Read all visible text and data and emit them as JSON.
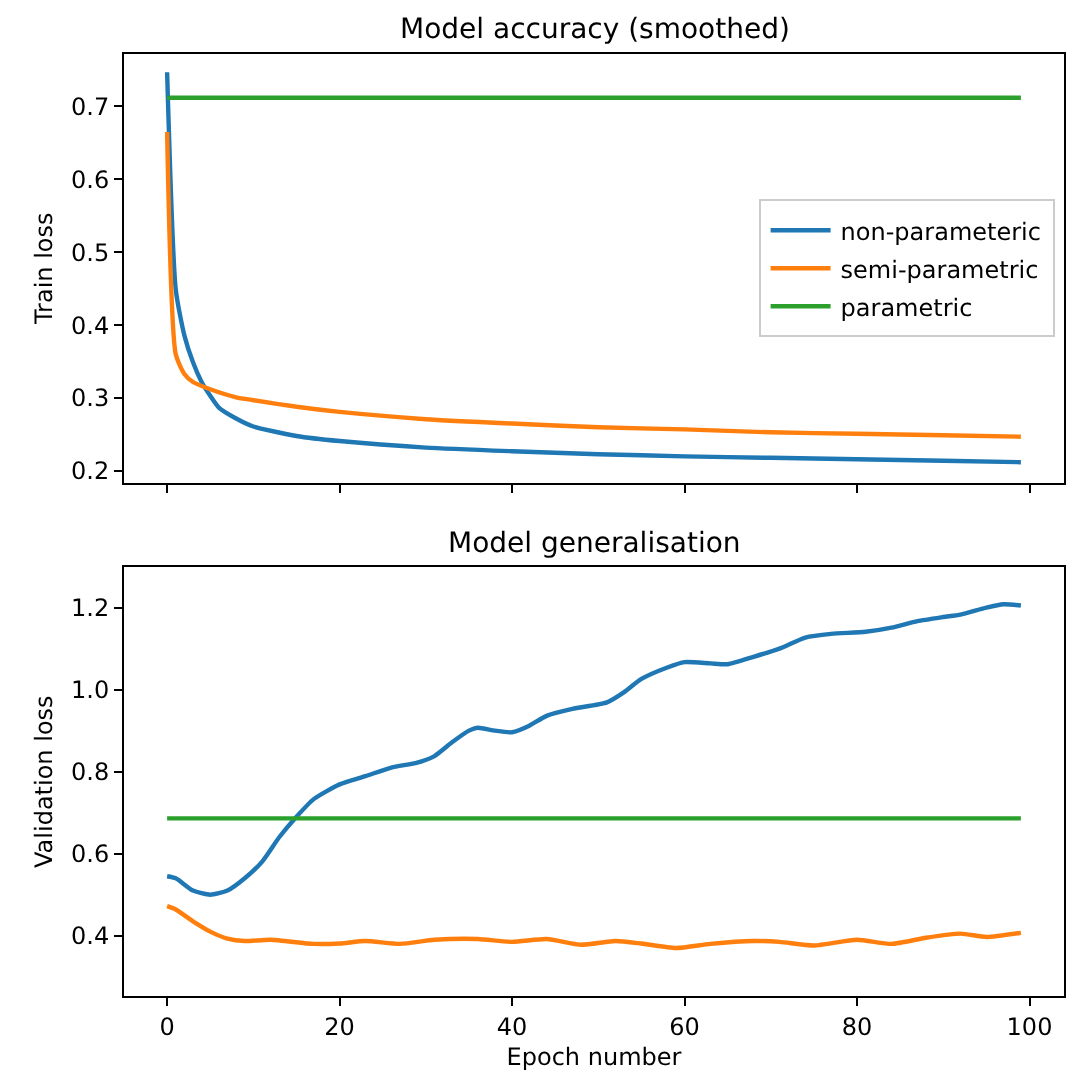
{
  "chart_data": [
    {
      "type": "line",
      "title": "Model accuracy (smoothed)",
      "ylabel": "Train loss",
      "xlim": [
        -5,
        104
      ],
      "xticks": [
        0,
        20,
        40,
        60,
        80,
        100
      ],
      "ylim": [
        0.184,
        0.772
      ],
      "yticks": [
        0.2,
        0.3,
        0.4,
        0.5,
        0.6,
        0.7
      ],
      "tick_labels": "y",
      "legend": "right",
      "marker": "none",
      "line_style": "solid",
      "series": [
        {
          "name": "non-parameteric",
          "color": "#1f77b4",
          "x": [
            0,
            1,
            2,
            3,
            4,
            5,
            6,
            8,
            10,
            15,
            20,
            30,
            40,
            50,
            60,
            70,
            80,
            90,
            99
          ],
          "values": [
            0.747,
            0.449,
            0.386,
            0.349,
            0.322,
            0.303,
            0.287,
            0.272,
            0.261,
            0.248,
            0.241,
            0.232,
            0.227,
            0.223,
            0.22,
            0.218,
            0.216,
            0.214,
            0.212
          ]
        },
        {
          "name": "semi-parametric",
          "color": "#ff7f0e",
          "x": [
            0,
            1,
            2,
            3,
            5,
            8,
            10,
            15,
            20,
            30,
            40,
            50,
            60,
            70,
            80,
            90,
            99
          ],
          "values": [
            0.665,
            0.36,
            0.333,
            0.322,
            0.312,
            0.301,
            0.297,
            0.288,
            0.281,
            0.271,
            0.265,
            0.26,
            0.257,
            0.253,
            0.251,
            0.249,
            0.247
          ]
        },
        {
          "name": "parametric",
          "color": "#2ca02c",
          "x": [
            0,
            99
          ],
          "values": [
            0.712,
            0.712
          ]
        }
      ]
    },
    {
      "type": "line",
      "title": "Model generalisation",
      "xlabel": "Epoch number",
      "ylabel": "Validation loss",
      "xlim": [
        -5,
        104
      ],
      "xticks": [
        0,
        20,
        40,
        60,
        80,
        100
      ],
      "ylim": [
        0.253,
        1.298
      ],
      "yticks": [
        0.4,
        0.6,
        0.8,
        {
          "value": 1,
          "label": "1.0"
        },
        1.2
      ],
      "legend": false,
      "marker": "none",
      "line_style": "solid",
      "series": [
        {
          "color": "#1f77b4",
          "x": [
            0,
            1,
            3,
            5,
            7,
            9,
            11,
            13,
            15,
            17,
            20,
            23,
            26,
            29,
            31,
            33,
            35,
            36,
            38,
            40,
            42,
            44,
            47,
            51,
            53,
            55,
            58,
            60,
            63,
            65,
            68,
            71,
            74,
            77,
            81,
            84,
            87,
            90,
            92,
            95,
            97,
            99
          ],
          "values": [
            0.545,
            0.54,
            0.51,
            0.5,
            0.51,
            0.54,
            0.58,
            0.64,
            0.69,
            0.733,
            0.769,
            0.789,
            0.81,
            0.822,
            0.838,
            0.871,
            0.9,
            0.907,
            0.9,
            0.896,
            0.912,
            0.936,
            0.953,
            0.969,
            0.994,
            1.026,
            1.054,
            1.067,
            1.064,
            1.062,
            1.08,
            1.1,
            1.127,
            1.136,
            1.141,
            1.151,
            1.167,
            1.177,
            1.183,
            1.2,
            1.208,
            1.205
          ]
        },
        {
          "color": "#ff7f0e",
          "x": [
            0,
            1,
            3,
            5,
            7,
            9,
            12,
            17,
            20,
            23,
            27,
            31,
            36,
            40,
            44,
            48,
            52,
            55,
            59,
            63,
            68,
            71,
            75,
            80,
            84,
            88,
            92,
            95,
            99
          ],
          "values": [
            0.472,
            0.464,
            0.435,
            0.41,
            0.393,
            0.387,
            0.39,
            0.38,
            0.381,
            0.387,
            0.38,
            0.39,
            0.392,
            0.385,
            0.392,
            0.378,
            0.387,
            0.381,
            0.37,
            0.38,
            0.387,
            0.385,
            0.376,
            0.39,
            0.38,
            0.395,
            0.405,
            0.397,
            0.407
          ]
        },
        {
          "color": "#2ca02c",
          "x": [
            0,
            99
          ],
          "values": [
            0.686,
            0.686
          ]
        }
      ]
    }
  ]
}
